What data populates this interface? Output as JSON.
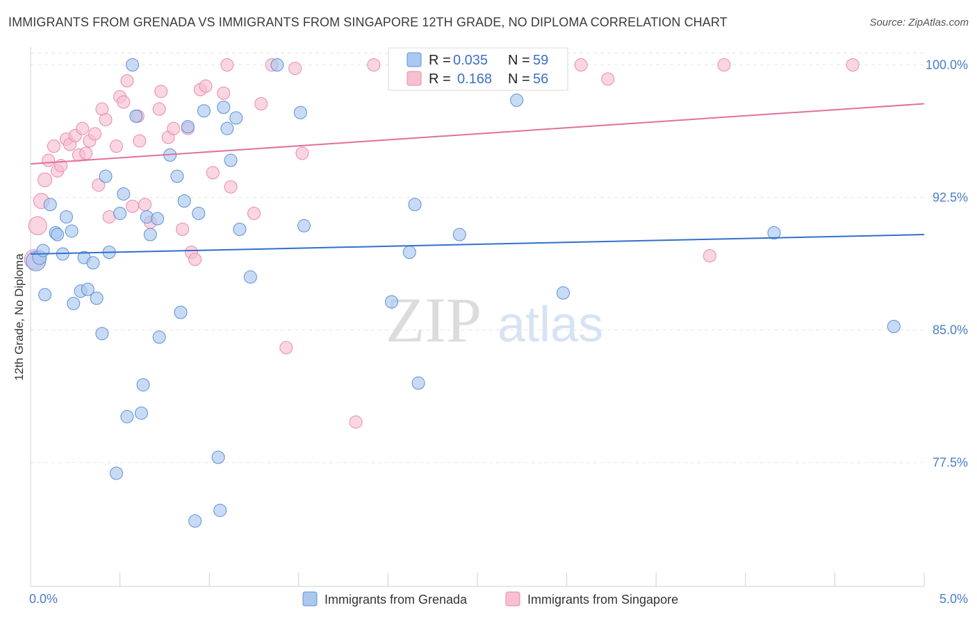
{
  "title": "IMMIGRANTS FROM GRENADA VS IMMIGRANTS FROM SINGAPORE 12TH GRADE, NO DIPLOMA CORRELATION CHART",
  "source": "Source: ZipAtlas.com",
  "watermark": {
    "zip": "ZIP",
    "atlas": "atlas"
  },
  "colors": {
    "grenada_fill": "#aac8ee",
    "grenada_stroke": "#5a8fd8",
    "grenada_line": "#2f6fca",
    "singapore_fill": "#f7bfd2",
    "singapore_stroke": "#e88aab",
    "singapore_line": "#e0709a",
    "tick_text": "#4a7cc7",
    "grid": "#e4e4e4"
  },
  "legend": {
    "rows": [
      {
        "r_label": "R =",
        "r_value": "0.035",
        "n_label": "N =",
        "n_value": "59"
      },
      {
        "r_label": "R =",
        "r_value": "0.168",
        "n_label": "N =",
        "n_value": "56"
      }
    ]
  },
  "chart_data": {
    "type": "scatter",
    "title": "IMMIGRANTS FROM GRENADA VS IMMIGRANTS FROM SINGAPORE 12TH GRADE, NO DIPLOMA CORRELATION CHART",
    "xlabel": "",
    "ylabel": "12th Grade, No Diploma",
    "xlim": [
      0.0,
      5.0
    ],
    "ylim": [
      70.5,
      101.0
    ],
    "x_tick_labels": [
      "0.0%",
      "5.0%"
    ],
    "y_ticks": [
      77.5,
      85.0,
      92.5,
      100.0
    ],
    "y_tick_labels": [
      "77.5%",
      "85.0%",
      "92.5%",
      "100.0%"
    ],
    "grid": true,
    "legend_position": "top-center",
    "series": [
      {
        "name": "Immigrants from Grenada",
        "r": 0.035,
        "n": 59,
        "trend": {
          "x": [
            0.0,
            5.0
          ],
          "y": [
            89.3,
            90.4
          ]
        },
        "points": [
          {
            "x": 0.03,
            "y": 88.9,
            "s": 14
          },
          {
            "x": 0.05,
            "y": 89.1,
            "s": 10
          },
          {
            "x": 0.07,
            "y": 89.5,
            "s": 9
          },
          {
            "x": 0.08,
            "y": 87.0,
            "s": 9
          },
          {
            "x": 0.11,
            "y": 92.1,
            "s": 9
          },
          {
            "x": 0.14,
            "y": 90.5,
            "s": 9
          },
          {
            "x": 0.15,
            "y": 90.4,
            "s": 9
          },
          {
            "x": 0.18,
            "y": 89.3,
            "s": 9
          },
          {
            "x": 0.2,
            "y": 91.4,
            "s": 9
          },
          {
            "x": 0.23,
            "y": 90.6,
            "s": 9
          },
          {
            "x": 0.24,
            "y": 86.5,
            "s": 9
          },
          {
            "x": 0.28,
            "y": 87.2,
            "s": 9
          },
          {
            "x": 0.3,
            "y": 89.1,
            "s": 9
          },
          {
            "x": 0.32,
            "y": 87.3,
            "s": 9
          },
          {
            "x": 0.35,
            "y": 88.8,
            "s": 9
          },
          {
            "x": 0.37,
            "y": 86.8,
            "s": 9
          },
          {
            "x": 0.4,
            "y": 84.8,
            "s": 9
          },
          {
            "x": 0.42,
            "y": 93.7,
            "s": 9
          },
          {
            "x": 0.44,
            "y": 89.4,
            "s": 9
          },
          {
            "x": 0.48,
            "y": 76.9,
            "s": 9
          },
          {
            "x": 0.5,
            "y": 91.6,
            "s": 9
          },
          {
            "x": 0.52,
            "y": 92.7,
            "s": 9
          },
          {
            "x": 0.54,
            "y": 80.1,
            "s": 9
          },
          {
            "x": 0.57,
            "y": 100.0,
            "s": 9
          },
          {
            "x": 0.59,
            "y": 97.1,
            "s": 9
          },
          {
            "x": 0.62,
            "y": 80.3,
            "s": 9
          },
          {
            "x": 0.63,
            "y": 81.9,
            "s": 9
          },
          {
            "x": 0.65,
            "y": 91.4,
            "s": 9
          },
          {
            "x": 0.67,
            "y": 90.4,
            "s": 9
          },
          {
            "x": 0.71,
            "y": 91.3,
            "s": 9
          },
          {
            "x": 0.72,
            "y": 84.6,
            "s": 9
          },
          {
            "x": 0.78,
            "y": 94.9,
            "s": 9
          },
          {
            "x": 0.82,
            "y": 93.7,
            "s": 9
          },
          {
            "x": 0.84,
            "y": 86.0,
            "s": 9
          },
          {
            "x": 0.86,
            "y": 92.3,
            "s": 9
          },
          {
            "x": 0.88,
            "y": 96.5,
            "s": 9
          },
          {
            "x": 0.94,
            "y": 91.6,
            "s": 9
          },
          {
            "x": 0.92,
            "y": 74.2,
            "s": 9
          },
          {
            "x": 0.97,
            "y": 97.4,
            "s": 9
          },
          {
            "x": 1.05,
            "y": 77.8,
            "s": 9
          },
          {
            "x": 1.06,
            "y": 74.8,
            "s": 9
          },
          {
            "x": 1.08,
            "y": 97.6,
            "s": 9
          },
          {
            "x": 1.1,
            "y": 96.4,
            "s": 9
          },
          {
            "x": 1.12,
            "y": 94.6,
            "s": 9
          },
          {
            "x": 1.15,
            "y": 97.0,
            "s": 9
          },
          {
            "x": 1.17,
            "y": 90.7,
            "s": 9
          },
          {
            "x": 1.23,
            "y": 88.0,
            "s": 9
          },
          {
            "x": 1.38,
            "y": 100.0,
            "s": 9
          },
          {
            "x": 1.51,
            "y": 97.3,
            "s": 9
          },
          {
            "x": 1.53,
            "y": 90.9,
            "s": 9
          },
          {
            "x": 2.02,
            "y": 86.6,
            "s": 9
          },
          {
            "x": 2.12,
            "y": 89.4,
            "s": 9
          },
          {
            "x": 2.15,
            "y": 92.1,
            "s": 9
          },
          {
            "x": 2.17,
            "y": 82.0,
            "s": 9
          },
          {
            "x": 2.4,
            "y": 90.4,
            "s": 9
          },
          {
            "x": 2.72,
            "y": 98.0,
            "s": 9
          },
          {
            "x": 2.98,
            "y": 87.1,
            "s": 9
          },
          {
            "x": 4.16,
            "y": 90.5,
            "s": 9
          },
          {
            "x": 4.83,
            "y": 85.2,
            "s": 9
          }
        ]
      },
      {
        "name": "Immigrants from Singapore",
        "r": 0.168,
        "n": 56,
        "trend": {
          "x": [
            0.0,
            5.0
          ],
          "y": [
            94.4,
            97.8
          ]
        },
        "points": [
          {
            "x": 0.02,
            "y": 89.0,
            "s": 14
          },
          {
            "x": 0.04,
            "y": 90.9,
            "s": 13
          },
          {
            "x": 0.06,
            "y": 92.3,
            "s": 11
          },
          {
            "x": 0.08,
            "y": 93.5,
            "s": 10
          },
          {
            "x": 0.1,
            "y": 94.6,
            "s": 9
          },
          {
            "x": 0.13,
            "y": 95.4,
            "s": 9
          },
          {
            "x": 0.15,
            "y": 94.0,
            "s": 9
          },
          {
            "x": 0.17,
            "y": 94.3,
            "s": 9
          },
          {
            "x": 0.2,
            "y": 95.8,
            "s": 9
          },
          {
            "x": 0.22,
            "y": 95.5,
            "s": 9
          },
          {
            "x": 0.25,
            "y": 96.0,
            "s": 9
          },
          {
            "x": 0.27,
            "y": 94.9,
            "s": 9
          },
          {
            "x": 0.29,
            "y": 96.4,
            "s": 9
          },
          {
            "x": 0.31,
            "y": 95.0,
            "s": 9
          },
          {
            "x": 0.33,
            "y": 95.7,
            "s": 9
          },
          {
            "x": 0.36,
            "y": 96.1,
            "s": 9
          },
          {
            "x": 0.38,
            "y": 93.2,
            "s": 9
          },
          {
            "x": 0.4,
            "y": 97.5,
            "s": 9
          },
          {
            "x": 0.42,
            "y": 96.9,
            "s": 9
          },
          {
            "x": 0.44,
            "y": 91.4,
            "s": 9
          },
          {
            "x": 0.48,
            "y": 95.4,
            "s": 9
          },
          {
            "x": 0.5,
            "y": 98.2,
            "s": 9
          },
          {
            "x": 0.52,
            "y": 97.9,
            "s": 9
          },
          {
            "x": 0.54,
            "y": 99.1,
            "s": 9
          },
          {
            "x": 0.57,
            "y": 92.0,
            "s": 9
          },
          {
            "x": 0.6,
            "y": 97.1,
            "s": 9
          },
          {
            "x": 0.61,
            "y": 95.7,
            "s": 9
          },
          {
            "x": 0.64,
            "y": 92.1,
            "s": 9
          },
          {
            "x": 0.67,
            "y": 91.1,
            "s": 9
          },
          {
            "x": 0.73,
            "y": 98.5,
            "s": 9
          },
          {
            "x": 0.72,
            "y": 97.5,
            "s": 9
          },
          {
            "x": 0.77,
            "y": 95.9,
            "s": 9
          },
          {
            "x": 0.8,
            "y": 96.4,
            "s": 9
          },
          {
            "x": 0.85,
            "y": 90.7,
            "s": 9
          },
          {
            "x": 0.88,
            "y": 96.4,
            "s": 9
          },
          {
            "x": 0.9,
            "y": 89.4,
            "s": 9
          },
          {
            "x": 0.92,
            "y": 89.0,
            "s": 9
          },
          {
            "x": 0.95,
            "y": 98.6,
            "s": 9
          },
          {
            "x": 0.98,
            "y": 98.8,
            "s": 9
          },
          {
            "x": 1.02,
            "y": 93.9,
            "s": 9
          },
          {
            "x": 1.08,
            "y": 98.4,
            "s": 9
          },
          {
            "x": 1.1,
            "y": 100.0,
            "s": 9
          },
          {
            "x": 1.12,
            "y": 93.1,
            "s": 9
          },
          {
            "x": 1.25,
            "y": 91.6,
            "s": 9
          },
          {
            "x": 1.29,
            "y": 97.8,
            "s": 9
          },
          {
            "x": 1.35,
            "y": 100.0,
            "s": 9
          },
          {
            "x": 1.43,
            "y": 84.0,
            "s": 9
          },
          {
            "x": 1.48,
            "y": 99.8,
            "s": 9
          },
          {
            "x": 1.52,
            "y": 95.0,
            "s": 9
          },
          {
            "x": 1.82,
            "y": 79.8,
            "s": 9
          },
          {
            "x": 1.92,
            "y": 100.0,
            "s": 9
          },
          {
            "x": 3.08,
            "y": 100.0,
            "s": 9
          },
          {
            "x": 3.23,
            "y": 99.2,
            "s": 9
          },
          {
            "x": 3.8,
            "y": 89.2,
            "s": 9
          },
          {
            "x": 3.88,
            "y": 100.0,
            "s": 9
          },
          {
            "x": 4.6,
            "y": 100.0,
            "s": 9
          }
        ]
      }
    ]
  }
}
